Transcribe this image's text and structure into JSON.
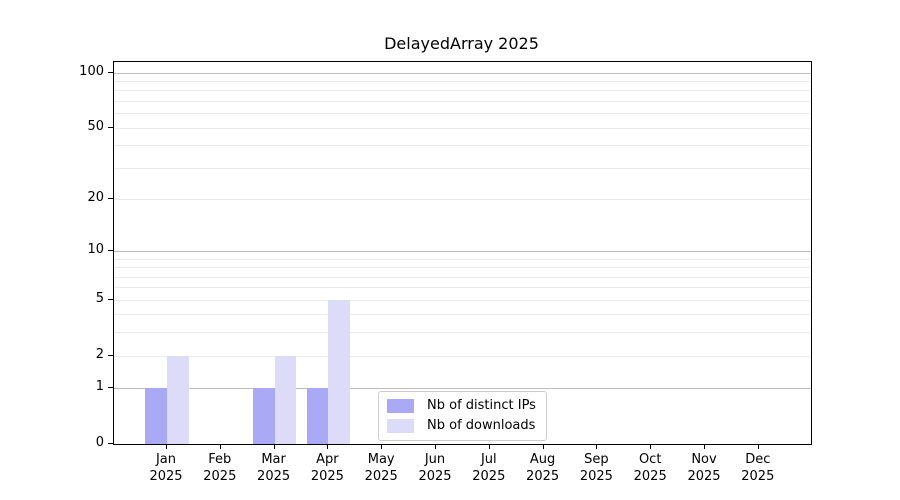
{
  "figure": {
    "title": "DelayedArray 2025"
  },
  "chart_data": {
    "type": "bar",
    "title": "DelayedArray 2025",
    "categories": [
      "Jan",
      "Feb",
      "Mar",
      "Apr",
      "May",
      "Jun",
      "Jul",
      "Aug",
      "Sep",
      "Oct",
      "Nov",
      "Dec"
    ],
    "year_label": "2025",
    "series": [
      {
        "name": "Nb of distinct IPs",
        "color": "#a9a9f5",
        "values": [
          1,
          0,
          1,
          1,
          0,
          0,
          0,
          0,
          0,
          0,
          0,
          0
        ]
      },
      {
        "name": "Nb of downloads",
        "color": "#dcdcf9",
        "values": [
          2,
          0,
          2,
          5,
          0,
          0,
          0,
          0,
          0,
          0,
          0,
          0
        ]
      }
    ],
    "yscale": "log1p",
    "ylim": [
      0,
      114
    ],
    "yticks": [
      0,
      1,
      2,
      5,
      10,
      20,
      50,
      100
    ],
    "grid_major": [
      1,
      10,
      100
    ],
    "grid_minor": [
      2,
      3,
      4,
      5,
      6,
      7,
      8,
      9,
      20,
      30,
      40,
      50,
      60,
      70,
      80,
      90
    ],
    "grid": "on",
    "legend_position": "inside lower center",
    "colors": {
      "grid_major": "#bdbdbd",
      "grid_minor": "#ebebeb",
      "spine": "#000000",
      "text": "#000000",
      "background": "#ffffff"
    }
  }
}
